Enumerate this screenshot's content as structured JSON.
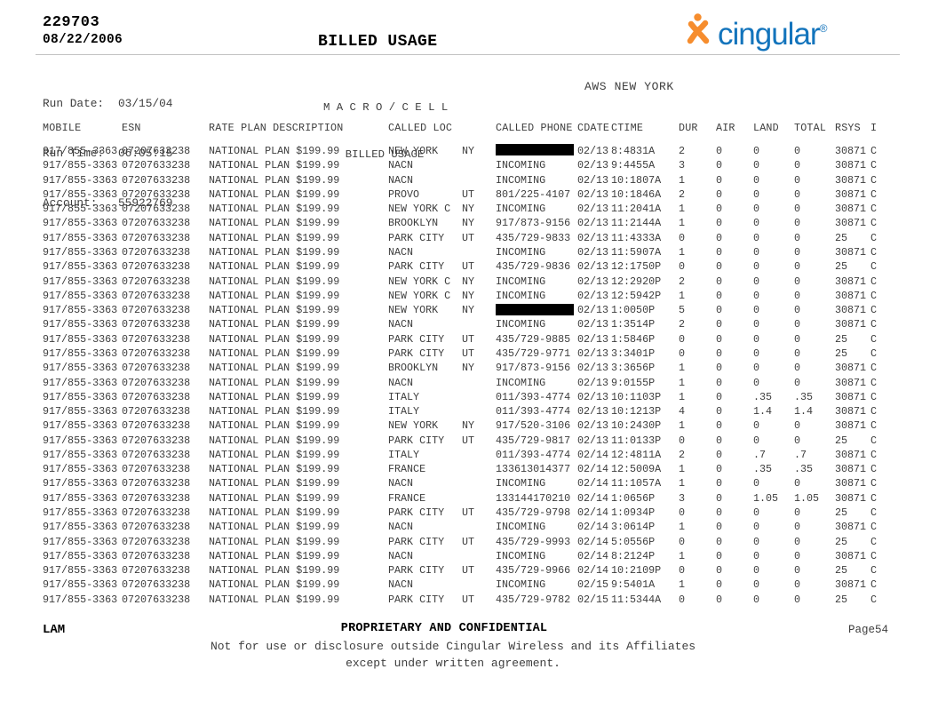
{
  "header": {
    "doc_number": "229703",
    "doc_date": "08/22/2006",
    "page_title": "BILLED USAGE",
    "logo_brand": "cingular",
    "logo_registered": "®"
  },
  "colors": {
    "logo_orange": "#F68D2E",
    "logo_blue": "#1374BC",
    "rule_gray": "#c2c2c2",
    "redaction_black": "#000000"
  },
  "report_info": {
    "run_date_label": "Run Date:",
    "run_date_value": "03/15/04",
    "run_time_label": "Run Time:",
    "run_time_value": "06:05:15",
    "account_label": "Account:",
    "account_value": "55922769",
    "system_line1": "M A C R O / C E L L",
    "system_line2": "BILLED USAGE",
    "market": "AWS NEW YORK"
  },
  "table": {
    "headers": [
      "MOBILE",
      "ESN",
      "RATE PLAN DESCRIPTION",
      "CALLED LOC",
      "CALLED PHONE",
      "CDATE",
      "CTIME",
      "DUR",
      "AIR",
      "LAND",
      "TOTAL",
      "RSYS",
      "I"
    ],
    "rows": [
      {
        "mobile": "917/855-3363",
        "esn": "07207633238",
        "plan": "NATIONAL PLAN $199.99",
        "loc": "NEW YORK",
        "state": "NY",
        "phone": "",
        "redacted": true,
        "cdate": "02/13",
        "ctime": "8:4831A",
        "dur": "2",
        "air": "0",
        "land": "0",
        "total": "0",
        "rsys": "30871",
        "i": "C"
      },
      {
        "mobile": "917/855-3363",
        "esn": "07207633238",
        "plan": "NATIONAL PLAN $199.99",
        "loc": "NACN",
        "state": "",
        "phone": "INCOMING",
        "redacted": false,
        "cdate": "02/13",
        "ctime": "9:4455A",
        "dur": "3",
        "air": "0",
        "land": "0",
        "total": "0",
        "rsys": "30871",
        "i": "C"
      },
      {
        "mobile": "917/855-3363",
        "esn": "07207633238",
        "plan": "NATIONAL PLAN $199.99",
        "loc": "NACN",
        "state": "",
        "phone": "INCOMING",
        "redacted": false,
        "cdate": "02/13",
        "ctime": "10:1807A",
        "dur": "1",
        "air": "0",
        "land": "0",
        "total": "0",
        "rsys": "30871",
        "i": "C"
      },
      {
        "mobile": "917/855-3363",
        "esn": "07207633238",
        "plan": "NATIONAL PLAN $199.99",
        "loc": "PROVO",
        "state": "UT",
        "phone": "801/225-4107",
        "redacted": false,
        "cdate": "02/13",
        "ctime": "10:1846A",
        "dur": "2",
        "air": "0",
        "land": "0",
        "total": "0",
        "rsys": "30871",
        "i": "C"
      },
      {
        "mobile": "917/855-3363",
        "esn": "07207633238",
        "plan": "NATIONAL PLAN $199.99",
        "loc": "NEW YORK C",
        "state": "NY",
        "phone": "INCOMING",
        "redacted": false,
        "cdate": "02/13",
        "ctime": "11:2041A",
        "dur": "1",
        "air": "0",
        "land": "0",
        "total": "0",
        "rsys": "30871",
        "i": "C"
      },
      {
        "mobile": "917/855-3363",
        "esn": "07207633238",
        "plan": "NATIONAL PLAN $199.99",
        "loc": "BROOKLYN",
        "state": "NY",
        "phone": "917/873-9156",
        "redacted": false,
        "cdate": "02/13",
        "ctime": "11:2144A",
        "dur": "1",
        "air": "0",
        "land": "0",
        "total": "0",
        "rsys": "30871",
        "i": "C"
      },
      {
        "mobile": "917/855-3363",
        "esn": "07207633238",
        "plan": "NATIONAL PLAN $199.99",
        "loc": "PARK CITY",
        "state": "UT",
        "phone": "435/729-9833",
        "redacted": false,
        "cdate": "02/13",
        "ctime": "11:4333A",
        "dur": "0",
        "air": "0",
        "land": "0",
        "total": "0",
        "rsys": "25",
        "i": "C"
      },
      {
        "mobile": "917/855-3363",
        "esn": "07207633238",
        "plan": "NATIONAL PLAN $199.99",
        "loc": "NACN",
        "state": "",
        "phone": "INCOMING",
        "redacted": false,
        "cdate": "02/13",
        "ctime": "11:5907A",
        "dur": "1",
        "air": "0",
        "land": "0",
        "total": "0",
        "rsys": "30871",
        "i": "C"
      },
      {
        "mobile": "917/855-3363",
        "esn": "07207633238",
        "plan": "NATIONAL PLAN $199.99",
        "loc": "PARK CITY",
        "state": "UT",
        "phone": "435/729-9836",
        "redacted": false,
        "cdate": "02/13",
        "ctime": "12:1750P",
        "dur": "0",
        "air": "0",
        "land": "0",
        "total": "0",
        "rsys": "25",
        "i": "C"
      },
      {
        "mobile": "917/855-3363",
        "esn": "07207633238",
        "plan": "NATIONAL PLAN $199.99",
        "loc": "NEW YORK C",
        "state": "NY",
        "phone": "INCOMING",
        "redacted": false,
        "cdate": "02/13",
        "ctime": "12:2920P",
        "dur": "2",
        "air": "0",
        "land": "0",
        "total": "0",
        "rsys": "30871",
        "i": "C"
      },
      {
        "mobile": "917/855-3363",
        "esn": "07207633238",
        "plan": "NATIONAL PLAN $199.99",
        "loc": "NEW YORK C",
        "state": "NY",
        "phone": "INCOMING",
        "redacted": false,
        "cdate": "02/13",
        "ctime": "12:5942P",
        "dur": "1",
        "air": "0",
        "land": "0",
        "total": "0",
        "rsys": "30871",
        "i": "C"
      },
      {
        "mobile": "917/855-3363",
        "esn": "07207633238",
        "plan": "NATIONAL PLAN $199.99",
        "loc": "NEW YORK",
        "state": "NY",
        "phone": "",
        "redacted": true,
        "cdate": "02/13",
        "ctime": "1:0050P",
        "dur": "5",
        "air": "0",
        "land": "0",
        "total": "0",
        "rsys": "30871",
        "i": "C"
      },
      {
        "mobile": "917/855-3363",
        "esn": "07207633238",
        "plan": "NATIONAL PLAN $199.99",
        "loc": "NACN",
        "state": "",
        "phone": "INCOMING",
        "redacted": false,
        "cdate": "02/13",
        "ctime": "1:3514P",
        "dur": "2",
        "air": "0",
        "land": "0",
        "total": "0",
        "rsys": "30871",
        "i": "C"
      },
      {
        "mobile": "917/855-3363",
        "esn": "07207633238",
        "plan": "NATIONAL PLAN $199.99",
        "loc": "PARK CITY",
        "state": "UT",
        "phone": "435/729-9885",
        "redacted": false,
        "cdate": "02/13",
        "ctime": "1:5846P",
        "dur": "0",
        "air": "0",
        "land": "0",
        "total": "0",
        "rsys": "25",
        "i": "C"
      },
      {
        "mobile": "917/855-3363",
        "esn": "07207633238",
        "plan": "NATIONAL PLAN $199.99",
        "loc": "PARK CITY",
        "state": "UT",
        "phone": "435/729-9771",
        "redacted": false,
        "cdate": "02/13",
        "ctime": "3:3401P",
        "dur": "0",
        "air": "0",
        "land": "0",
        "total": "0",
        "rsys": "25",
        "i": "C"
      },
      {
        "mobile": "917/855-3363",
        "esn": "07207633238",
        "plan": "NATIONAL PLAN $199.99",
        "loc": "BROOKLYN",
        "state": "NY",
        "phone": "917/873-9156",
        "redacted": false,
        "cdate": "02/13",
        "ctime": "3:3656P",
        "dur": "1",
        "air": "0",
        "land": "0",
        "total": "0",
        "rsys": "30871",
        "i": "C"
      },
      {
        "mobile": "917/855-3363",
        "esn": "07207633238",
        "plan": "NATIONAL PLAN $199.99",
        "loc": "NACN",
        "state": "",
        "phone": "INCOMING",
        "redacted": false,
        "cdate": "02/13",
        "ctime": "9:0155P",
        "dur": "1",
        "air": "0",
        "land": "0",
        "total": "0",
        "rsys": "30871",
        "i": "C"
      },
      {
        "mobile": "917/855-3363",
        "esn": "07207633238",
        "plan": "NATIONAL PLAN $199.99",
        "loc": "ITALY",
        "state": "",
        "phone": "011/393-4774",
        "redacted": false,
        "cdate": "02/13",
        "ctime": "10:1103P",
        "dur": "1",
        "air": "0",
        "land": ".35",
        "total": ".35",
        "rsys": "30871",
        "i": "C"
      },
      {
        "mobile": "917/855-3363",
        "esn": "07207633238",
        "plan": "NATIONAL PLAN $199.99",
        "loc": "ITALY",
        "state": "",
        "phone": "011/393-4774",
        "redacted": false,
        "cdate": "02/13",
        "ctime": "10:1213P",
        "dur": "4",
        "air": "0",
        "land": "1.4",
        "total": "1.4",
        "rsys": "30871",
        "i": "C"
      },
      {
        "mobile": "917/855-3363",
        "esn": "07207633238",
        "plan": "NATIONAL PLAN $199.99",
        "loc": "NEW YORK",
        "state": "NY",
        "phone": "917/520-3106",
        "redacted": false,
        "cdate": "02/13",
        "ctime": "10:2430P",
        "dur": "1",
        "air": "0",
        "land": "0",
        "total": "0",
        "rsys": "30871",
        "i": "C"
      },
      {
        "mobile": "917/855-3363",
        "esn": "07207633238",
        "plan": "NATIONAL PLAN $199.99",
        "loc": "PARK CITY",
        "state": "UT",
        "phone": "435/729-9817",
        "redacted": false,
        "cdate": "02/13",
        "ctime": "11:0133P",
        "dur": "0",
        "air": "0",
        "land": "0",
        "total": "0",
        "rsys": "25",
        "i": "C"
      },
      {
        "mobile": "917/855-3363",
        "esn": "07207633238",
        "plan": "NATIONAL PLAN $199.99",
        "loc": "ITALY",
        "state": "",
        "phone": "011/393-4774",
        "redacted": false,
        "cdate": "02/14",
        "ctime": "12:4811A",
        "dur": "2",
        "air": "0",
        "land": ".7",
        "total": ".7",
        "rsys": "30871",
        "i": "C"
      },
      {
        "mobile": "917/855-3363",
        "esn": "07207633238",
        "plan": "NATIONAL PLAN $199.99",
        "loc": "FRANCE",
        "state": "",
        "phone": "133613014377",
        "redacted": false,
        "cdate": "02/14",
        "ctime": "12:5009A",
        "dur": "1",
        "air": "0",
        "land": ".35",
        "total": ".35",
        "rsys": "30871",
        "i": "C"
      },
      {
        "mobile": "917/855-3363",
        "esn": "07207633238",
        "plan": "NATIONAL PLAN $199.99",
        "loc": "NACN",
        "state": "",
        "phone": "INCOMING",
        "redacted": false,
        "cdate": "02/14",
        "ctime": "11:1057A",
        "dur": "1",
        "air": "0",
        "land": "0",
        "total": "0",
        "rsys": "30871",
        "i": "C"
      },
      {
        "mobile": "917/855-3363",
        "esn": "07207633238",
        "plan": "NATIONAL PLAN $199.99",
        "loc": "FRANCE",
        "state": "",
        "phone": "133144170210",
        "redacted": false,
        "cdate": "02/14",
        "ctime": "1:0656P",
        "dur": "3",
        "air": "0",
        "land": "1.05",
        "total": "1.05",
        "rsys": "30871",
        "i": "C"
      },
      {
        "mobile": "917/855-3363",
        "esn": "07207633238",
        "plan": "NATIONAL PLAN $199.99",
        "loc": "PARK CITY",
        "state": "UT",
        "phone": "435/729-9798",
        "redacted": false,
        "cdate": "02/14",
        "ctime": "1:0934P",
        "dur": "0",
        "air": "0",
        "land": "0",
        "total": "0",
        "rsys": "25",
        "i": "C"
      },
      {
        "mobile": "917/855-3363",
        "esn": "07207633238",
        "plan": "NATIONAL PLAN $199.99",
        "loc": "NACN",
        "state": "",
        "phone": "INCOMING",
        "redacted": false,
        "cdate": "02/14",
        "ctime": "3:0614P",
        "dur": "1",
        "air": "0",
        "land": "0",
        "total": "0",
        "rsys": "30871",
        "i": "C"
      },
      {
        "mobile": "917/855-3363",
        "esn": "07207633238",
        "plan": "NATIONAL PLAN $199.99",
        "loc": "PARK CITY",
        "state": "UT",
        "phone": "435/729-9993",
        "redacted": false,
        "cdate": "02/14",
        "ctime": "5:0556P",
        "dur": "0",
        "air": "0",
        "land": "0",
        "total": "0",
        "rsys": "25",
        "i": "C"
      },
      {
        "mobile": "917/855-3363",
        "esn": "07207633238",
        "plan": "NATIONAL PLAN $199.99",
        "loc": "NACN",
        "state": "",
        "phone": "INCOMING",
        "redacted": false,
        "cdate": "02/14",
        "ctime": "8:2124P",
        "dur": "1",
        "air": "0",
        "land": "0",
        "total": "0",
        "rsys": "30871",
        "i": "C"
      },
      {
        "mobile": "917/855-3363",
        "esn": "07207633238",
        "plan": "NATIONAL PLAN $199.99",
        "loc": "PARK CITY",
        "state": "UT",
        "phone": "435/729-9966",
        "redacted": false,
        "cdate": "02/14",
        "ctime": "10:2109P",
        "dur": "0",
        "air": "0",
        "land": "0",
        "total": "0",
        "rsys": "25",
        "i": "C"
      },
      {
        "mobile": "917/855-3363",
        "esn": "07207633238",
        "plan": "NATIONAL PLAN $199.99",
        "loc": "NACN",
        "state": "",
        "phone": "INCOMING",
        "redacted": false,
        "cdate": "02/15",
        "ctime": "9:5401A",
        "dur": "1",
        "air": "0",
        "land": "0",
        "total": "0",
        "rsys": "30871",
        "i": "C"
      },
      {
        "mobile": "917/855-3363",
        "esn": "07207633238",
        "plan": "NATIONAL PLAN $199.99",
        "loc": "PARK CITY",
        "state": "UT",
        "phone": "435/729-9782",
        "redacted": false,
        "cdate": "02/15",
        "ctime": "11:5344A",
        "dur": "0",
        "air": "0",
        "land": "0",
        "total": "0",
        "rsys": "25",
        "i": "C"
      }
    ]
  },
  "footer": {
    "office_code": "LAM",
    "confidential": "PROPRIETARY AND CONFIDENTIAL",
    "notice_line1": "Not for use or disclosure outside Cingular Wireless and its Affiliates",
    "notice_line2": "except under written agreement.",
    "page_label": "Page",
    "page_number": "54"
  }
}
